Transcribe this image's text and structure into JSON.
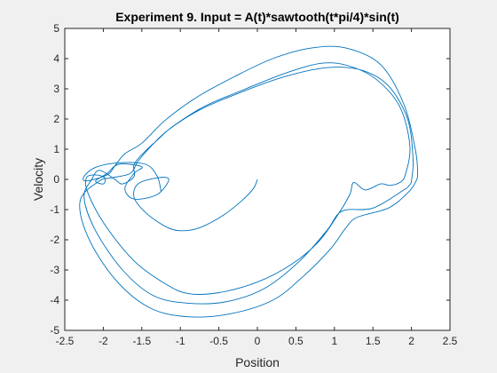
{
  "chart_data": {
    "type": "line",
    "title": "Experiment 9. Input = A(t)*sawtooth(t*pi/4)*sin(t)",
    "xlabel": "Position",
    "ylabel": "Velocity",
    "xlim": [
      -2.5,
      2.5
    ],
    "ylim": [
      -5,
      5
    ],
    "xticks": [
      -2.5,
      -2,
      -1.5,
      -1,
      -0.5,
      0,
      0.5,
      1,
      1.5,
      2,
      2.5
    ],
    "xtick_labels": [
      "-2.5",
      "-2",
      "-1.5",
      "-1",
      "-0.5",
      "0",
      "0.5",
      "1",
      "1.5",
      "2",
      "2.5"
    ],
    "yticks": [
      -5,
      -4,
      -3,
      -2,
      -1,
      0,
      1,
      2,
      3,
      4,
      5
    ],
    "ytick_labels": [
      "-5",
      "-4",
      "-3",
      "-2",
      "-1",
      "0",
      "1",
      "2",
      "3",
      "4",
      "5"
    ],
    "grid": false,
    "line_color": "#0072bd",
    "series": [
      {
        "points": [
          [
            0,
            0
          ],
          [
            -0.05,
            -0.3
          ],
          [
            -0.2,
            -0.7
          ],
          [
            -0.45,
            -1.2
          ],
          [
            -0.75,
            -1.6
          ],
          [
            -1.0,
            -1.7
          ],
          [
            -1.2,
            -1.55
          ],
          [
            -1.45,
            -1.1
          ],
          [
            -1.6,
            -0.6
          ],
          [
            -1.55,
            -0.15
          ],
          [
            -1.3,
            0.05
          ],
          [
            -1.15,
            0.0
          ],
          [
            -1.3,
            -0.5
          ],
          [
            -1.6,
            -0.65
          ],
          [
            -1.72,
            -0.3
          ],
          [
            -1.6,
            0.2
          ],
          [
            -1.5,
            0.42
          ],
          [
            -1.8,
            0.5
          ],
          [
            -1.95,
            0.2
          ],
          [
            -2.1,
            -0.05
          ],
          [
            -2.0,
            -0.15
          ],
          [
            -1.98,
            0.05
          ],
          [
            -2.1,
            0.15
          ],
          [
            -2.22,
            0.05
          ],
          [
            -2.2,
            -0.45
          ],
          [
            -1.98,
            -1.5
          ],
          [
            -1.6,
            -2.7
          ],
          [
            -1.2,
            -3.45
          ],
          [
            -0.9,
            -3.78
          ],
          [
            -0.5,
            -3.75
          ],
          [
            0.0,
            -3.4
          ],
          [
            0.45,
            -2.8
          ],
          [
            0.8,
            -2.05
          ],
          [
            1.05,
            -1.15
          ],
          [
            1.2,
            -0.5
          ],
          [
            1.25,
            -0.1
          ],
          [
            1.4,
            -0.35
          ],
          [
            1.6,
            -0.15
          ],
          [
            1.72,
            -0.2
          ],
          [
            1.85,
            -0.1
          ],
          [
            1.92,
            0.15
          ],
          [
            1.98,
            1.1
          ],
          [
            1.85,
            2.4
          ],
          [
            1.55,
            3.3
          ],
          [
            1.2,
            3.75
          ],
          [
            0.85,
            3.85
          ],
          [
            0.4,
            3.55
          ],
          [
            -0.15,
            3.0
          ],
          [
            -0.7,
            2.4
          ],
          [
            -1.1,
            1.75
          ],
          [
            -1.3,
            1.3
          ],
          [
            -1.45,
            0.95
          ],
          [
            -1.6,
            0.5
          ],
          [
            -1.6,
            0.1
          ],
          [
            -1.75,
            -0.15
          ],
          [
            -1.85,
            0.0
          ],
          [
            -2.05,
            0.3
          ],
          [
            -2.15,
            0.0
          ],
          [
            -2.25,
            -0.6
          ],
          [
            -2.1,
            -1.7
          ],
          [
            -1.75,
            -3.0
          ],
          [
            -1.35,
            -3.85
          ],
          [
            -0.9,
            -4.1
          ],
          [
            -0.4,
            -4.05
          ],
          [
            0.1,
            -3.6
          ],
          [
            0.55,
            -2.7
          ],
          [
            0.9,
            -1.7
          ],
          [
            1.1,
            -1.05
          ],
          [
            1.5,
            -0.95
          ],
          [
            1.9,
            -0.35
          ],
          [
            1.97,
            -0.2
          ],
          [
            2.0,
            -0.05
          ],
          [
            2.02,
            0.7
          ],
          [
            1.95,
            2.0
          ],
          [
            1.7,
            3.1
          ],
          [
            1.35,
            3.62
          ],
          [
            0.9,
            3.7
          ],
          [
            0.35,
            3.4
          ],
          [
            -0.2,
            2.9
          ],
          [
            -0.75,
            2.3
          ],
          [
            -1.15,
            1.65
          ],
          [
            -1.38,
            1.1
          ],
          [
            -1.55,
            0.6
          ],
          [
            -1.65,
            0.2
          ],
          [
            -1.9,
            0.05
          ],
          [
            -2.05,
            -0.05
          ],
          [
            -2.3,
            -0.7
          ],
          [
            -2.2,
            -1.9
          ],
          [
            -1.85,
            -3.3
          ],
          [
            -1.4,
            -4.25
          ],
          [
            -0.9,
            -4.55
          ],
          [
            -0.35,
            -4.45
          ],
          [
            0.2,
            -4.0
          ],
          [
            0.6,
            -3.2
          ],
          [
            0.95,
            -2.3
          ],
          [
            1.15,
            -1.6
          ],
          [
            1.3,
            -1.25
          ],
          [
            1.7,
            -0.95
          ],
          [
            1.95,
            -0.45
          ],
          [
            2.05,
            -0.1
          ],
          [
            2.08,
            0.2
          ],
          [
            2.05,
            1.0
          ],
          [
            1.9,
            2.5
          ],
          [
            1.6,
            3.8
          ],
          [
            1.15,
            4.35
          ],
          [
            0.7,
            4.35
          ],
          [
            0.2,
            4.0
          ],
          [
            -0.3,
            3.4
          ],
          [
            -0.8,
            2.7
          ],
          [
            -1.2,
            1.95
          ],
          [
            -1.5,
            1.2
          ],
          [
            -1.72,
            0.85
          ],
          [
            -1.85,
            0.45
          ],
          [
            -1.95,
            0.15
          ],
          [
            -2.22,
            -0.05
          ],
          [
            -2.25,
            0.1
          ],
          [
            -2.1,
            0.4
          ],
          [
            -1.8,
            0.55
          ],
          [
            -1.45,
            0.5
          ],
          [
            -1.3,
            0.1
          ],
          [
            -1.25,
            -0.4
          ]
        ]
      }
    ]
  }
}
